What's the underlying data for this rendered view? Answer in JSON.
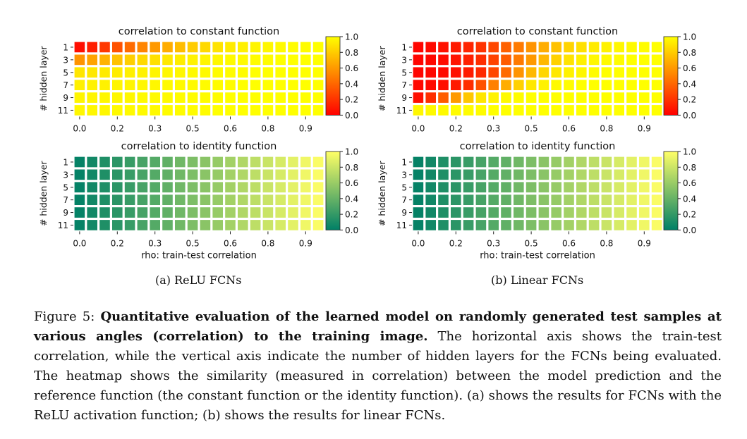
{
  "colors": {
    "cmap_hot": "autumn",
    "cmap_identity": "summer"
  },
  "chart_data": [
    {
      "type": "heatmap",
      "title": "correlation to constant function",
      "xlabel": "",
      "ylabel": "# hidden layer",
      "x_ticks": [
        "0.0",
        "0.2",
        "0.3",
        "0.5",
        "0.6",
        "0.8",
        "0.9"
      ],
      "y_ticks": [
        "1",
        "3",
        "5",
        "7",
        "9",
        "11"
      ],
      "colorbar_ticks": [
        "1.0",
        "0.8",
        "0.6",
        "0.4",
        "0.2",
        "0.0"
      ],
      "colormap": "autumn",
      "vmin": 0.0,
      "vmax": 1.0,
      "values": [
        [
          0.05,
          0.12,
          0.22,
          0.32,
          0.42,
          0.52,
          0.6,
          0.68,
          0.74,
          0.8,
          0.85,
          0.89,
          0.92,
          0.94,
          0.96,
          0.97,
          0.98,
          0.99,
          0.99,
          1.0
        ],
        [
          0.58,
          0.64,
          0.7,
          0.76,
          0.81,
          0.85,
          0.88,
          0.91,
          0.93,
          0.95,
          0.96,
          0.97,
          0.98,
          0.98,
          0.99,
          0.99,
          1.0,
          1.0,
          1.0,
          1.0
        ],
        [
          0.9,
          0.91,
          0.92,
          0.93,
          0.94,
          0.95,
          0.96,
          0.97,
          0.97,
          0.98,
          0.98,
          0.99,
          0.99,
          0.99,
          1.0,
          1.0,
          1.0,
          1.0,
          1.0,
          1.0
        ],
        [
          0.94,
          0.95,
          0.95,
          0.96,
          0.96,
          0.97,
          0.97,
          0.98,
          0.98,
          0.98,
          0.99,
          0.99,
          0.99,
          1.0,
          1.0,
          1.0,
          1.0,
          1.0,
          1.0,
          1.0
        ],
        [
          0.96,
          0.96,
          0.97,
          0.97,
          0.97,
          0.98,
          0.98,
          0.98,
          0.99,
          0.99,
          0.99,
          0.99,
          1.0,
          1.0,
          1.0,
          1.0,
          1.0,
          1.0,
          1.0,
          1.0
        ],
        [
          0.97,
          0.97,
          0.97,
          0.98,
          0.98,
          0.98,
          0.98,
          0.99,
          0.99,
          0.99,
          0.99,
          1.0,
          1.0,
          1.0,
          1.0,
          1.0,
          1.0,
          1.0,
          1.0,
          1.0
        ]
      ]
    },
    {
      "type": "heatmap",
      "title": "correlation to constant function",
      "xlabel": "",
      "ylabel": "# hidden layer",
      "x_ticks": [
        "0.0",
        "0.2",
        "0.3",
        "0.5",
        "0.6",
        "0.8",
        "0.9"
      ],
      "y_ticks": [
        "1",
        "3",
        "5",
        "7",
        "9",
        "11"
      ],
      "colorbar_ticks": [
        "1.0",
        "0.8",
        "0.6",
        "0.4",
        "0.2",
        "0.0"
      ],
      "colormap": "autumn",
      "vmin": 0.0,
      "vmax": 1.0,
      "values": [
        [
          0.02,
          0.04,
          0.07,
          0.1,
          0.14,
          0.2,
          0.28,
          0.38,
          0.48,
          0.58,
          0.68,
          0.76,
          0.83,
          0.88,
          0.92,
          0.95,
          0.97,
          0.98,
          0.99,
          1.0
        ],
        [
          0.02,
          0.03,
          0.05,
          0.08,
          0.12,
          0.18,
          0.26,
          0.36,
          0.48,
          0.6,
          0.72,
          0.82,
          0.89,
          0.94,
          0.97,
          0.98,
          0.99,
          1.0,
          1.0,
          1.0
        ],
        [
          0.02,
          0.03,
          0.04,
          0.06,
          0.1,
          0.16,
          0.28,
          0.42,
          0.58,
          0.72,
          0.84,
          0.91,
          0.95,
          0.97,
          0.99,
          1.0,
          1.0,
          1.0,
          1.0,
          1.0
        ],
        [
          0.03,
          0.04,
          0.06,
          0.1,
          0.18,
          0.32,
          0.5,
          0.68,
          0.82,
          0.91,
          0.95,
          0.98,
          0.99,
          1.0,
          1.0,
          1.0,
          1.0,
          1.0,
          1.0,
          1.0
        ],
        [
          0.06,
          0.18,
          0.36,
          0.6,
          0.78,
          0.9,
          0.95,
          0.98,
          0.99,
          1.0,
          1.0,
          1.0,
          1.0,
          1.0,
          1.0,
          1.0,
          1.0,
          1.0,
          1.0,
          1.0
        ],
        [
          0.97,
          0.98,
          0.98,
          0.99,
          0.99,
          0.99,
          1.0,
          1.0,
          1.0,
          1.0,
          1.0,
          1.0,
          1.0,
          1.0,
          1.0,
          1.0,
          1.0,
          1.0,
          1.0,
          1.0
        ]
      ]
    },
    {
      "type": "heatmap",
      "title": "correlation to identity function",
      "xlabel": "rho: train-test correlation",
      "ylabel": "# hidden layer",
      "x_ticks": [
        "0.0",
        "0.2",
        "0.3",
        "0.5",
        "0.6",
        "0.8",
        "0.9"
      ],
      "y_ticks": [
        "1",
        "3",
        "5",
        "7",
        "9",
        "11"
      ],
      "colorbar_ticks": [
        "1.0",
        "0.8",
        "0.6",
        "0.4",
        "0.2",
        "0.0"
      ],
      "colormap": "summer",
      "vmin": 0.0,
      "vmax": 1.0,
      "values": [
        [
          0.02,
          0.07,
          0.12,
          0.17,
          0.22,
          0.28,
          0.33,
          0.38,
          0.44,
          0.49,
          0.54,
          0.59,
          0.64,
          0.69,
          0.74,
          0.79,
          0.84,
          0.89,
          0.94,
          0.98
        ],
        [
          0.02,
          0.07,
          0.12,
          0.17,
          0.22,
          0.28,
          0.33,
          0.38,
          0.44,
          0.49,
          0.54,
          0.59,
          0.64,
          0.69,
          0.74,
          0.79,
          0.84,
          0.89,
          0.94,
          0.98
        ],
        [
          0.02,
          0.07,
          0.12,
          0.17,
          0.22,
          0.28,
          0.33,
          0.38,
          0.44,
          0.49,
          0.54,
          0.59,
          0.64,
          0.69,
          0.74,
          0.79,
          0.84,
          0.89,
          0.94,
          0.98
        ],
        [
          0.02,
          0.07,
          0.12,
          0.17,
          0.22,
          0.28,
          0.33,
          0.38,
          0.44,
          0.49,
          0.54,
          0.59,
          0.64,
          0.69,
          0.74,
          0.79,
          0.84,
          0.89,
          0.94,
          0.98
        ],
        [
          0.02,
          0.07,
          0.12,
          0.17,
          0.22,
          0.28,
          0.33,
          0.38,
          0.44,
          0.49,
          0.54,
          0.59,
          0.64,
          0.69,
          0.74,
          0.79,
          0.84,
          0.89,
          0.94,
          0.98
        ],
        [
          0.02,
          0.07,
          0.12,
          0.17,
          0.22,
          0.28,
          0.33,
          0.38,
          0.44,
          0.49,
          0.54,
          0.59,
          0.64,
          0.69,
          0.74,
          0.79,
          0.84,
          0.89,
          0.94,
          0.98
        ]
      ]
    },
    {
      "type": "heatmap",
      "title": "correlation to identity function",
      "xlabel": "rho: train-test correlation",
      "ylabel": "# hidden layer",
      "x_ticks": [
        "0.0",
        "0.2",
        "0.3",
        "0.5",
        "0.6",
        "0.8",
        "0.9"
      ],
      "y_ticks": [
        "1",
        "3",
        "5",
        "7",
        "9",
        "11"
      ],
      "colorbar_ticks": [
        "1.0",
        "0.8",
        "0.6",
        "0.4",
        "0.2",
        "0.0"
      ],
      "colormap": "summer",
      "vmin": 0.0,
      "vmax": 1.0,
      "values": [
        [
          0.02,
          0.07,
          0.12,
          0.17,
          0.22,
          0.28,
          0.33,
          0.38,
          0.44,
          0.49,
          0.54,
          0.59,
          0.64,
          0.69,
          0.74,
          0.79,
          0.84,
          0.89,
          0.94,
          0.98
        ],
        [
          0.02,
          0.07,
          0.12,
          0.17,
          0.22,
          0.28,
          0.33,
          0.38,
          0.44,
          0.49,
          0.54,
          0.59,
          0.64,
          0.69,
          0.74,
          0.79,
          0.84,
          0.89,
          0.94,
          0.98
        ],
        [
          0.02,
          0.07,
          0.12,
          0.17,
          0.22,
          0.28,
          0.33,
          0.38,
          0.44,
          0.49,
          0.54,
          0.59,
          0.64,
          0.69,
          0.74,
          0.79,
          0.84,
          0.89,
          0.94,
          0.98
        ],
        [
          0.02,
          0.07,
          0.12,
          0.17,
          0.22,
          0.28,
          0.33,
          0.38,
          0.44,
          0.49,
          0.54,
          0.59,
          0.64,
          0.69,
          0.74,
          0.79,
          0.84,
          0.89,
          0.94,
          0.98
        ],
        [
          0.02,
          0.07,
          0.12,
          0.17,
          0.22,
          0.28,
          0.33,
          0.38,
          0.44,
          0.49,
          0.54,
          0.59,
          0.64,
          0.69,
          0.74,
          0.79,
          0.84,
          0.89,
          0.94,
          0.98
        ],
        [
          0.02,
          0.07,
          0.12,
          0.17,
          0.22,
          0.28,
          0.33,
          0.38,
          0.44,
          0.49,
          0.54,
          0.59,
          0.64,
          0.69,
          0.74,
          0.79,
          0.84,
          0.89,
          0.94,
          0.98
        ]
      ]
    }
  ],
  "subcaptions": {
    "a": "(a) ReLU FCNs",
    "b": "(b) Linear FCNs"
  },
  "caption": {
    "label": "Figure 5: ",
    "bold": "Quantitative evaluation of the learned model on randomly generated test samples at various angles (correlation) to the training image.",
    "body": " The horizontal axis shows the train-test correlation, while the vertical axis indicate the number of hidden layers for the FCNs being evaluated. The heatmap shows the similarity (measured in correlation) between the model prediction and the reference function (the constant function or the identity function). (a) shows the results for FCNs with the ReLU activation function; (b) shows the results for linear FCNs."
  }
}
